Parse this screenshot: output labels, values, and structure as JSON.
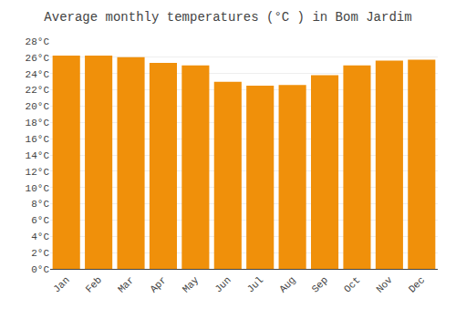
{
  "chart_data": {
    "type": "bar",
    "title": "Average monthly temperatures (°C ) in Bom Jardim",
    "categories": [
      "Jan",
      "Feb",
      "Mar",
      "Apr",
      "May",
      "Jun",
      "Jul",
      "Aug",
      "Sep",
      "Oct",
      "Nov",
      "Dec"
    ],
    "values": [
      26.2,
      26.2,
      26.0,
      25.3,
      25.0,
      23.0,
      22.5,
      22.6,
      23.8,
      25.0,
      25.6,
      25.7
    ],
    "color": "#F0900A",
    "ylim": [
      0,
      28
    ],
    "yticks": [
      {
        "value": 0,
        "label": "0°C"
      },
      {
        "value": 2,
        "label": "2°C"
      },
      {
        "value": 4,
        "label": "4°C"
      },
      {
        "value": 6,
        "label": "6°C"
      },
      {
        "value": 8,
        "label": "8°C"
      },
      {
        "value": 10,
        "label": "10°C"
      },
      {
        "value": 12,
        "label": "12°C"
      },
      {
        "value": 14,
        "label": "14°C"
      },
      {
        "value": 16,
        "label": "16°C"
      },
      {
        "value": 18,
        "label": "18°C"
      },
      {
        "value": 20,
        "label": "20°C"
      },
      {
        "value": 22,
        "label": "22°C"
      },
      {
        "value": 24,
        "label": "24°C"
      },
      {
        "value": 26,
        "label": "26°C"
      },
      {
        "value": 28,
        "label": "28°C"
      }
    ],
    "grid": true
  }
}
